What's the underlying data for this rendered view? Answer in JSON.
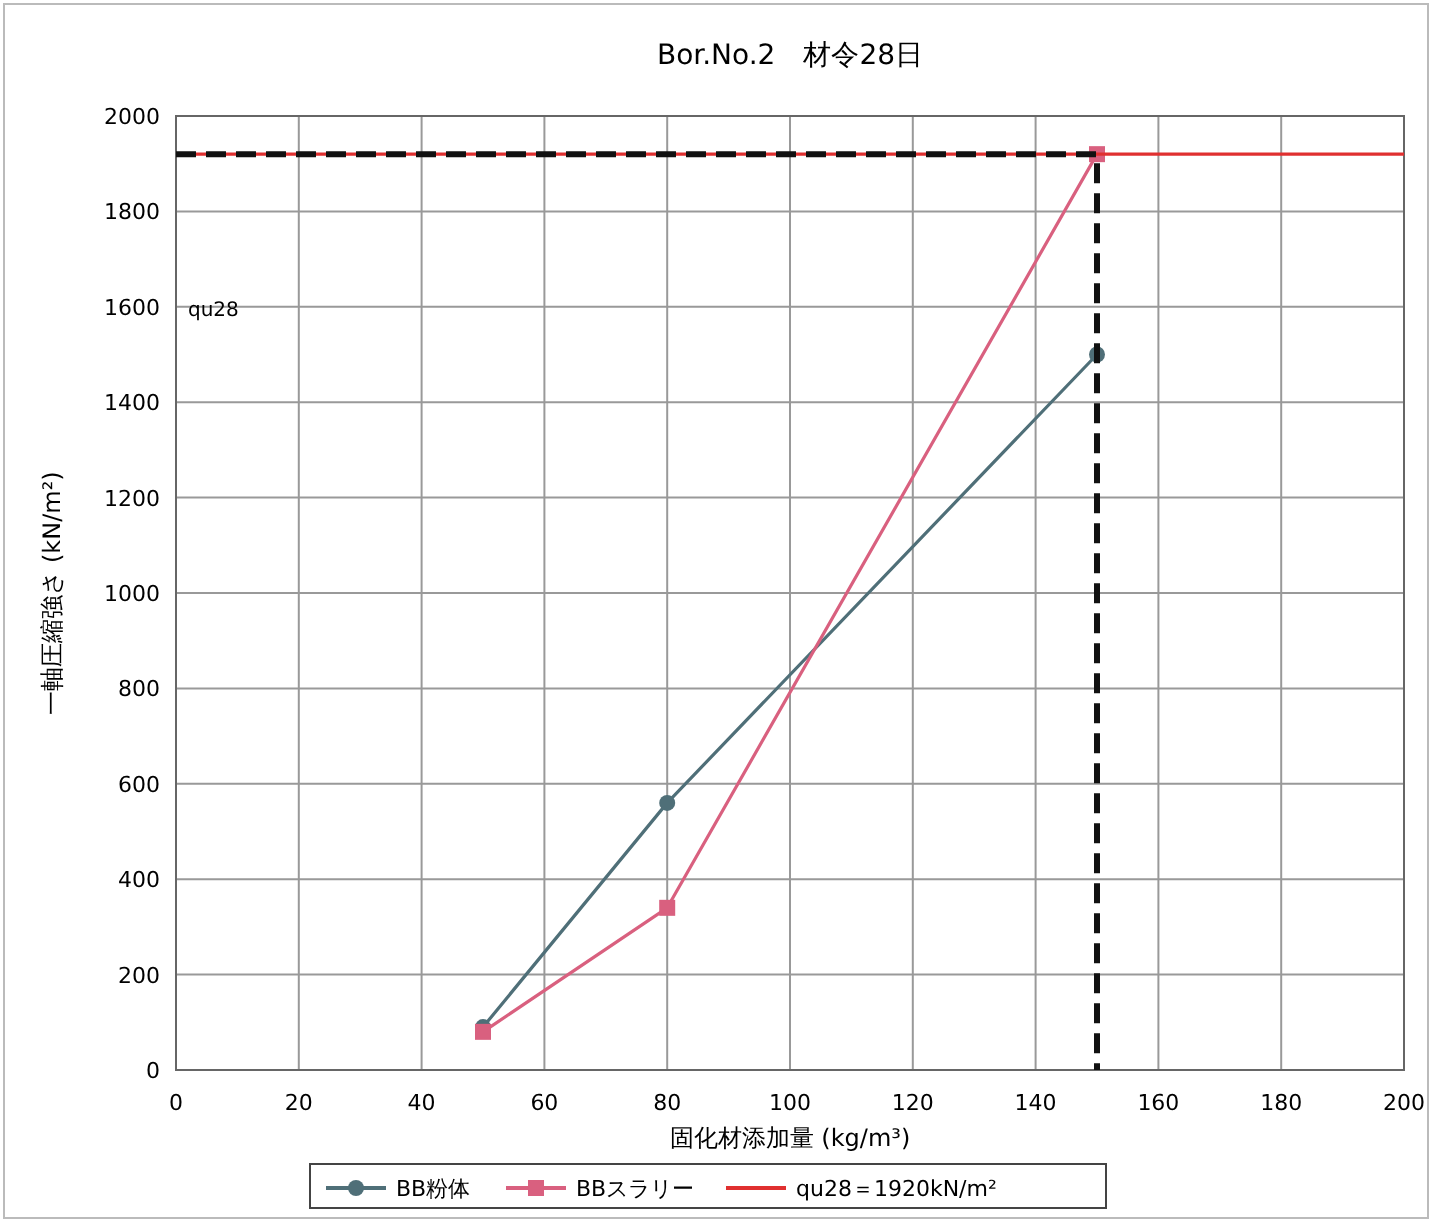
{
  "chart_data": {
    "type": "line",
    "title": "Bor.No.2　材令28日",
    "xlabel": "固化材添加量 (kg/m³)",
    "ylabel": "一軸圧縮強さ (kN/m²)",
    "xlim": [
      0,
      200
    ],
    "xticks": [
      0,
      20,
      40,
      60,
      80,
      100,
      120,
      140,
      160,
      180,
      200
    ],
    "ylim": [
      0,
      2000
    ],
    "yticks": [
      0,
      200,
      400,
      600,
      800,
      1000,
      1200,
      1400,
      1600,
      1800,
      2000
    ],
    "grid": true,
    "legend": "bottom",
    "series": [
      {
        "name": "BB粉体",
        "color": "#4f6f78",
        "marker": "circle",
        "x": [
          50,
          80,
          150
        ],
        "values": [
          90,
          560,
          1500
        ]
      },
      {
        "name": "BBスラリー",
        "color": "#d9607f",
        "marker": "square",
        "x": [
          50,
          80,
          150
        ],
        "values": [
          80,
          340,
          1920
        ]
      },
      {
        "name": "qu28＝1920kN/m²",
        "color": "#e03030",
        "marker": "none",
        "x": [
          0,
          200
        ],
        "values": [
          1920,
          1920
        ]
      },
      {
        "color": "#111111",
        "marker": "none",
        "line_style": "dashed",
        "x": [
          0,
          150,
          150
        ],
        "values": [
          1920,
          1920,
          0
        ]
      }
    ],
    "annotations": [
      "qu28"
    ]
  }
}
